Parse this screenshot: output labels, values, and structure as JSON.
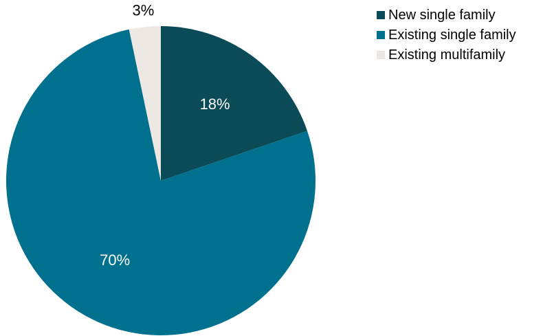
{
  "chart_data": {
    "type": "pie",
    "title": "",
    "slices": [
      {
        "name": "New single family",
        "value": 18,
        "label": "18%",
        "color": "#0b4b57",
        "label_color": "#ffffff"
      },
      {
        "name": "Existing single family",
        "value": 70,
        "label": "70%",
        "color": "#00708f",
        "label_color": "#ffffff"
      },
      {
        "name": "Existing multifamily",
        "value": 3,
        "label": "3%",
        "color": "#ede8e4",
        "label_color": "#000000"
      }
    ],
    "legend": {
      "position": "top-right",
      "items": [
        {
          "label": "New single family",
          "color": "#0b4b57"
        },
        {
          "label": "Existing single family",
          "color": "#00708f"
        },
        {
          "label": "Existing multifamily",
          "color": "#ede8e4"
        }
      ]
    }
  }
}
